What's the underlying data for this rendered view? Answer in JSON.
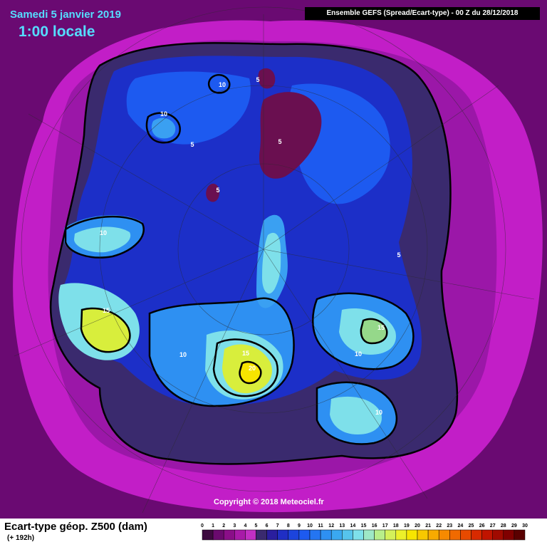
{
  "header": {
    "date": "Samedi 5 janvier 2019",
    "time": "1:00 locale",
    "run": "Ensemble GEFS  (Spread/Ecart-type) - 00 Z du 28/12/2018"
  },
  "map": {
    "projection": "polar-stereographic-north",
    "contour_labels": [
      "10",
      "5",
      "10",
      "5",
      "5",
      "5",
      "10",
      "5",
      "15",
      "10",
      "15",
      "20",
      "15",
      "10",
      "10"
    ],
    "colors": {
      "outer": "#6a0a72",
      "ring": "#c21ec7",
      "inner_ring": "#9b17a8",
      "core": "#3a2a6e",
      "low_spot": "#6a0f50",
      "deep_blue": "#1c2fc8",
      "blue": "#1d5af0",
      "light_blue": "#3aa0f2",
      "cyan": "#7ee0ea",
      "green": "#95d88a",
      "yellow_green": "#d8ee3c",
      "yellow": "#f7e500"
    }
  },
  "footer": {
    "copyright": "Copyright © 2018 Meteociel.fr",
    "variable": "Ecart-type géop. Z500 (dam)",
    "lead": "(+ 192h)"
  },
  "legend": {
    "ticks": [
      "0",
      "1",
      "2",
      "3",
      "4",
      "5",
      "6",
      "7",
      "8",
      "9",
      "10",
      "11",
      "12",
      "13",
      "14",
      "15",
      "16",
      "17",
      "18",
      "19",
      "20",
      "21",
      "22",
      "23",
      "24",
      "25",
      "26",
      "27",
      "28",
      "29",
      "30"
    ],
    "colors": [
      "#3d0a3f",
      "#6a0a6e",
      "#8a0e88",
      "#a81aa8",
      "#c230c4",
      "#3a2a6e",
      "#2a1e9e",
      "#1f2ec4",
      "#1c44dc",
      "#1d5af0",
      "#2475f2",
      "#2e90f2",
      "#3aa8f0",
      "#56c4ec",
      "#7ee0ea",
      "#9ee8c6",
      "#b8ee8a",
      "#d4f05a",
      "#ecf02a",
      "#f7e500",
      "#f8c800",
      "#f8aa00",
      "#f68a00",
      "#f06a00",
      "#e84a00",
      "#d82a00",
      "#c01400",
      "#a00a00",
      "#800000",
      "#5a0000"
    ]
  }
}
